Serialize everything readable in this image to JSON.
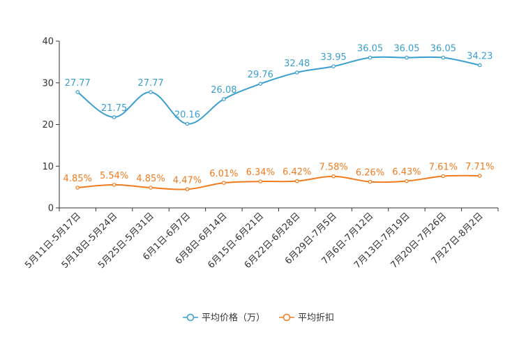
{
  "chart_data": {
    "type": "line",
    "categories": [
      "5月11日-5月17日",
      "5月18日-5月24日",
      "5月25日-5月31日",
      "6月1日-6月7日",
      "6月8日-6月14日",
      "6月15日-6月21日",
      "6月22日-6月28日",
      "6月29日-7月5日",
      "7月6日-7月12日",
      "7月13日-7月19日",
      "7月20日-7月26日",
      "7月27日-8月2日"
    ],
    "ylim": [
      0,
      40
    ],
    "yticks": [
      "0",
      "10",
      "20",
      "30",
      "40"
    ],
    "legend_position": "bottom-center",
    "series": [
      {
        "name": "平均价格（万）",
        "color": "#3a9ecf",
        "values": [
          27.77,
          21.75,
          27.77,
          20.16,
          26.08,
          29.76,
          32.48,
          33.95,
          36.05,
          36.05,
          36.05,
          34.23
        ],
        "labels": [
          "27.77",
          "21.75",
          "27.77",
          "20.16",
          "26.08",
          "29.76",
          "32.48",
          "33.95",
          "36.05",
          "36.05",
          "36.05",
          "34.23"
        ]
      },
      {
        "name": "平均折扣",
        "color": "#f07b1e",
        "values": [
          4.85,
          5.54,
          4.85,
          4.47,
          6.01,
          6.34,
          6.42,
          7.58,
          6.26,
          6.43,
          7.61,
          7.71
        ],
        "labels": [
          "4.85%",
          "5.54%",
          "4.85%",
          "4.47%",
          "6.01%",
          "6.34%",
          "6.42%",
          "7.58%",
          "6.26%",
          "6.43%",
          "7.61%",
          "7.71%"
        ]
      }
    ]
  }
}
